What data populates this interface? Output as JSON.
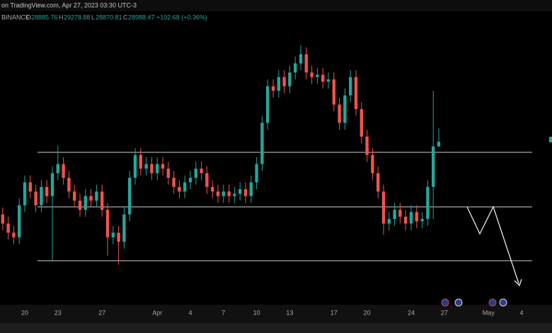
{
  "chart_data": {
    "type": "candlestick",
    "title": "on TradingView.com, Apr 27, 2023 03:30 UTC-3",
    "legend": {
      "exchange": "BINANCE",
      "open_label": "O",
      "open": "28885.76",
      "high_label": "H",
      "high": "29278.88",
      "low_label": "L",
      "low": "28870.81",
      "close_label": "C",
      "close": "28988.47",
      "change": "+102.68 (+0.36%)"
    },
    "categories": [
      null,
      null,
      null,
      null,
      "20",
      null,
      null,
      null,
      null,
      null,
      "23",
      null,
      null,
      null,
      null,
      null,
      null,
      null,
      "27",
      null,
      null,
      null,
      null,
      null,
      null,
      null,
      null,
      null,
      "Apr",
      null,
      null,
      null,
      null,
      null,
      "4",
      null,
      null,
      null,
      null,
      null,
      "7",
      null,
      null,
      null,
      null,
      null,
      "10",
      null,
      null,
      null,
      null,
      null,
      "13",
      null,
      null,
      null,
      null,
      null,
      null,
      null,
      "17",
      null,
      null,
      null,
      null,
      null,
      "20",
      null,
      null,
      null,
      null,
      null,
      null,
      null,
      "24",
      null,
      null,
      null,
      null,
      null,
      "27",
      null,
      null,
      null,
      null,
      null,
      null,
      null,
      "May",
      null,
      null,
      null,
      null,
      null,
      "4",
      null,
      null,
      null,
      null,
      null
    ],
    "open": [
      27400,
      27200,
      27000,
      26900,
      27600,
      28100,
      27900,
      27600,
      28000,
      27800,
      28300,
      28500,
      28200,
      27900,
      27700,
      27500,
      27800,
      27700,
      27900,
      27500,
      26900,
      27000,
      26800,
      27400,
      28200,
      28700,
      28400,
      28500,
      28300,
      28500,
      28400,
      28200,
      28000,
      27900,
      28100,
      28200,
      28400,
      28300,
      28000,
      27900,
      27800,
      27900,
      27800,
      27850,
      27950,
      27800,
      28100,
      28500,
      29400,
      30200,
      30100,
      30400,
      30200,
      30500,
      30700,
      30900,
      30500,
      30400,
      30450,
      30300,
      30350,
      29800,
      29400,
      30000,
      30400,
      29700,
      29100,
      28700,
      28300,
      27900,
      27200,
      27300,
      27500,
      27350,
      27200,
      27450,
      27250,
      27300,
      28000,
      28885.76,
      null,
      null,
      null,
      null,
      null,
      null,
      null,
      null,
      null,
      null,
      null,
      null,
      null,
      null,
      null,
      null,
      null,
      null,
      null,
      null
    ],
    "high": [
      27550,
      27350,
      27150,
      27750,
      28250,
      28250,
      28050,
      28150,
      28150,
      28450,
      28900,
      28650,
      28350,
      28050,
      27850,
      27950,
      27950,
      28050,
      28050,
      27650,
      27150,
      27150,
      27550,
      28350,
      28850,
      28850,
      28650,
      28650,
      28650,
      28650,
      28550,
      28350,
      28150,
      28250,
      28350,
      28550,
      28550,
      28450,
      28150,
      28050,
      28050,
      28050,
      28000,
      28100,
      28100,
      28250,
      28650,
      29550,
      30350,
      30350,
      30550,
      30550,
      30650,
      30850,
      31100,
      31050,
      30650,
      30600,
      30600,
      30500,
      30500,
      29950,
      30150,
      30550,
      30550,
      29850,
      29250,
      28850,
      28450,
      28050,
      27450,
      27650,
      27650,
      27500,
      27600,
      27600,
      27450,
      28150,
      30100,
      29278.88,
      null,
      null,
      null,
      null,
      null,
      null,
      null,
      null,
      null,
      null,
      null,
      null,
      null,
      null,
      null,
      null,
      null,
      null,
      null,
      null
    ],
    "low": [
      27050,
      26850,
      26750,
      26750,
      27450,
      27750,
      27450,
      27450,
      27650,
      26400,
      28150,
      28050,
      27750,
      27550,
      27350,
      27350,
      27550,
      27550,
      27350,
      26500,
      26750,
      26300,
      26650,
      27250,
      28050,
      28250,
      28250,
      28150,
      28150,
      28250,
      28050,
      27850,
      27750,
      27750,
      27950,
      28050,
      28150,
      27850,
      27750,
      27650,
      27650,
      27650,
      27650,
      27700,
      27650,
      27650,
      27950,
      28350,
      29250,
      29950,
      29950,
      30050,
      30050,
      30350,
      30550,
      30350,
      30250,
      30250,
      30150,
      30150,
      29650,
      29250,
      29250,
      29850,
      29550,
      28950,
      28550,
      28150,
      27750,
      26950,
      27050,
      27150,
      27200,
      27050,
      27050,
      27100,
      27100,
      27150,
      27300,
      28870.81,
      null,
      null,
      null,
      null,
      null,
      null,
      null,
      null,
      null,
      null,
      null,
      null,
      null,
      null,
      null,
      null,
      null,
      null,
      null,
      null
    ],
    "close": [
      27200,
      27000,
      26900,
      27600,
      28100,
      27900,
      27600,
      28000,
      27800,
      28300,
      28500,
      28200,
      27900,
      27700,
      27500,
      27800,
      27700,
      27900,
      27500,
      26900,
      27000,
      26800,
      27400,
      28200,
      28700,
      28400,
      28500,
      28300,
      28500,
      28400,
      28200,
      28000,
      27900,
      28100,
      28200,
      28400,
      28300,
      28000,
      27900,
      27800,
      27900,
      27800,
      27850,
      27950,
      27800,
      28100,
      28500,
      29400,
      30200,
      30100,
      30400,
      30200,
      30500,
      30700,
      30900,
      30500,
      30400,
      30450,
      30300,
      30350,
      29800,
      29400,
      30000,
      30400,
      29700,
      29100,
      28700,
      28300,
      27900,
      27200,
      27300,
      27500,
      27350,
      27200,
      27450,
      27250,
      27300,
      28000,
      28886,
      28988.47,
      null,
      null,
      null,
      null,
      null,
      null,
      null,
      null,
      null,
      null,
      null,
      null,
      null,
      null,
      null,
      null,
      null,
      null,
      null,
      null
    ],
    "up_color": "#26a69a",
    "down_color": "#ef5350",
    "levels": [
      28756,
      27564,
      26388
    ],
    "level_color": "#cfcfcf",
    "ylim": [
      25428,
      32084
    ]
  }
}
